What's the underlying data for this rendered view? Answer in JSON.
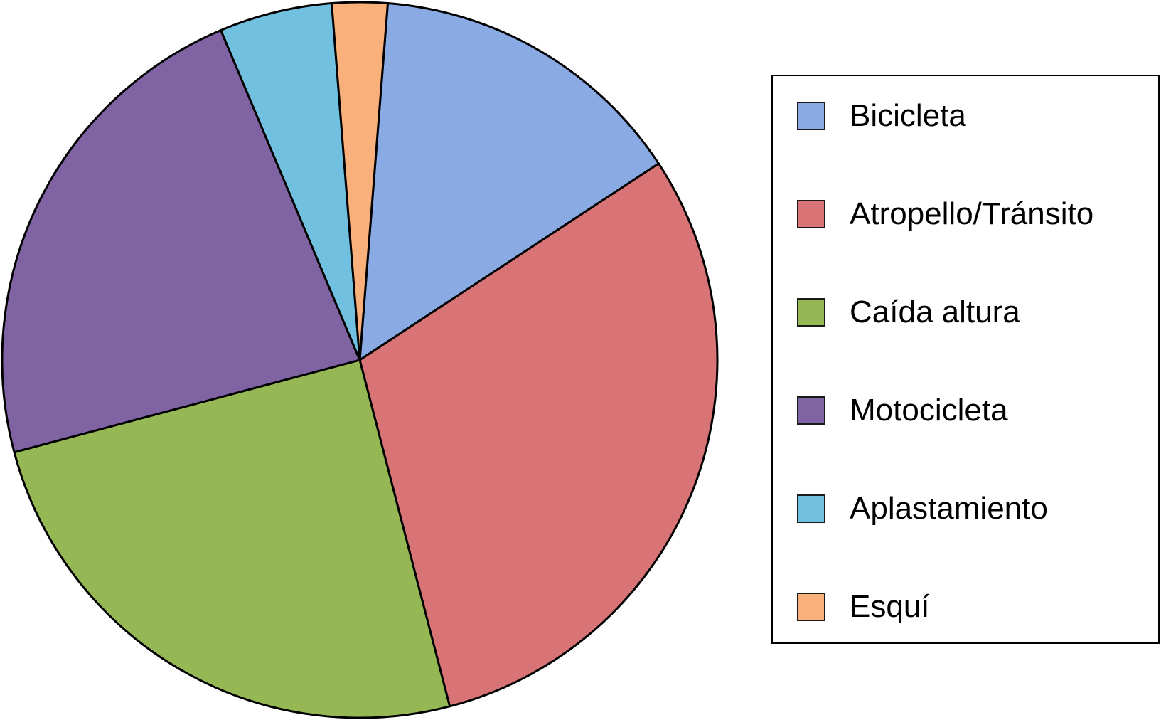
{
  "chart_data": {
    "type": "pie",
    "categories": [
      "Bicicleta",
      "Atropello/Tránsito",
      "Caída altura",
      "Motocicleta",
      "Aplastamiento",
      "Esquí"
    ],
    "values": [
      14.5,
      30.2,
      24.9,
      22.8,
      5.1,
      2.5
    ],
    "colors": [
      "#8aaae3",
      "#d87475",
      "#96b854",
      "#7f63a2",
      "#72c0df",
      "#f9b07a"
    ],
    "legend_position": "right",
    "start_angle_deg": 4.5,
    "direction": "clockwise"
  },
  "legend": {
    "items": [
      {
        "label": "Bicicleta",
        "color": "#8aaae3"
      },
      {
        "label": "Atropello/Tránsito",
        "color": "#d87475"
      },
      {
        "label": "Caída altura",
        "color": "#96b854"
      },
      {
        "label": "Motocicleta",
        "color": "#7f63a2"
      },
      {
        "label": "Aplastamiento",
        "color": "#72c0df"
      },
      {
        "label": "Esquí",
        "color": "#f9b07a"
      }
    ]
  }
}
